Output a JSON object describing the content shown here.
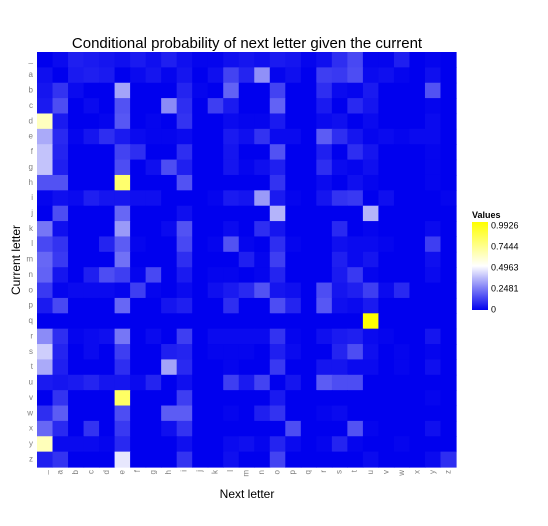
{
  "chart_data": {
    "type": "heatmap",
    "title": "Conditional probability of next letter given the current",
    "xlabel": "Next letter",
    "ylabel": "Current letter",
    "x_categories": [
      "_",
      "a",
      "b",
      "c",
      "d",
      "e",
      "f",
      "g",
      "h",
      "i",
      "j",
      "k",
      "l",
      "m",
      "n",
      "o",
      "p",
      "q",
      "r",
      "s",
      "t",
      "u",
      "v",
      "w",
      "x",
      "y",
      "z"
    ],
    "y_categories": [
      "_",
      "a",
      "b",
      "c",
      "d",
      "e",
      "f",
      "g",
      "h",
      "i",
      "j",
      "k",
      "l",
      "m",
      "n",
      "o",
      "p",
      "q",
      "r",
      "s",
      "t",
      "u",
      "v",
      "w",
      "x",
      "y",
      "z"
    ],
    "rows_top_to_bottom": true,
    "values": [
      [
        0.0,
        0.02,
        0.06,
        0.05,
        0.04,
        0.03,
        0.05,
        0.03,
        0.06,
        0.03,
        0.01,
        0.01,
        0.03,
        0.04,
        0.03,
        0.05,
        0.04,
        0.01,
        0.03,
        0.09,
        0.14,
        0.01,
        0.01,
        0.06,
        0.0,
        0.01,
        0.0
      ],
      [
        0.03,
        0.0,
        0.05,
        0.06,
        0.05,
        0.0,
        0.02,
        0.04,
        0.01,
        0.04,
        0.0,
        0.03,
        0.13,
        0.07,
        0.28,
        0.01,
        0.03,
        0.0,
        0.12,
        0.11,
        0.15,
        0.02,
        0.03,
        0.01,
        0.0,
        0.03,
        0.0
      ],
      [
        0.04,
        0.1,
        0.02,
        0.0,
        0.0,
        0.32,
        0.0,
        0.0,
        0.0,
        0.07,
        0.01,
        0.0,
        0.19,
        0.0,
        0.0,
        0.13,
        0.0,
        0.0,
        0.09,
        0.02,
        0.01,
        0.05,
        0.0,
        0.0,
        0.0,
        0.16,
        0.0
      ],
      [
        0.05,
        0.15,
        0.0,
        0.02,
        0.0,
        0.16,
        0.0,
        0.0,
        0.27,
        0.09,
        0.0,
        0.12,
        0.05,
        0.0,
        0.0,
        0.19,
        0.0,
        0.0,
        0.05,
        0.0,
        0.08,
        0.04,
        0.0,
        0.0,
        0.0,
        0.01,
        0.0
      ],
      [
        0.62,
        0.05,
        0.0,
        0.0,
        0.01,
        0.17,
        0.0,
        0.01,
        0.0,
        0.1,
        0.0,
        0.0,
        0.02,
        0.01,
        0.01,
        0.05,
        0.0,
        0.0,
        0.02,
        0.03,
        0.0,
        0.02,
        0.0,
        0.0,
        0.0,
        0.02,
        0.0
      ],
      [
        0.33,
        0.08,
        0.01,
        0.04,
        0.09,
        0.05,
        0.02,
        0.01,
        0.01,
        0.02,
        0.0,
        0.0,
        0.05,
        0.03,
        0.1,
        0.02,
        0.02,
        0.0,
        0.18,
        0.09,
        0.04,
        0.01,
        0.02,
        0.01,
        0.02,
        0.02,
        0.0
      ],
      [
        0.38,
        0.07,
        0.0,
        0.0,
        0.0,
        0.13,
        0.09,
        0.0,
        0.0,
        0.09,
        0.0,
        0.0,
        0.04,
        0.0,
        0.0,
        0.16,
        0.0,
        0.0,
        0.06,
        0.0,
        0.09,
        0.04,
        0.0,
        0.0,
        0.0,
        0.01,
        0.0
      ],
      [
        0.38,
        0.06,
        0.0,
        0.0,
        0.0,
        0.15,
        0.0,
        0.03,
        0.15,
        0.06,
        0.0,
        0.0,
        0.04,
        0.01,
        0.03,
        0.06,
        0.0,
        0.0,
        0.09,
        0.02,
        0.01,
        0.03,
        0.0,
        0.0,
        0.0,
        0.01,
        0.0
      ],
      [
        0.16,
        0.16,
        0.0,
        0.0,
        0.0,
        0.78,
        0.0,
        0.0,
        0.0,
        0.16,
        0.0,
        0.0,
        0.0,
        0.0,
        0.0,
        0.1,
        0.0,
        0.0,
        0.02,
        0.0,
        0.03,
        0.01,
        0.0,
        0.0,
        0.0,
        0.01,
        0.0
      ],
      [
        0.01,
        0.03,
        0.02,
        0.06,
        0.04,
        0.04,
        0.03,
        0.03,
        0.0,
        0.0,
        0.0,
        0.01,
        0.05,
        0.04,
        0.3,
        0.05,
        0.01,
        0.0,
        0.04,
        0.1,
        0.11,
        0.0,
        0.03,
        0.0,
        0.0,
        0.0,
        0.01
      ],
      [
        0.0,
        0.15,
        0.0,
        0.0,
        0.0,
        0.2,
        0.0,
        0.0,
        0.0,
        0.03,
        0.0,
        0.0,
        0.0,
        0.0,
        0.0,
        0.35,
        0.0,
        0.0,
        0.0,
        0.0,
        0.0,
        0.35,
        0.0,
        0.0,
        0.0,
        0.0,
        0.0
      ],
      [
        0.23,
        0.03,
        0.0,
        0.0,
        0.0,
        0.3,
        0.0,
        0.0,
        0.02,
        0.16,
        0.0,
        0.0,
        0.02,
        0.0,
        0.09,
        0.04,
        0.0,
        0.0,
        0.0,
        0.08,
        0.0,
        0.01,
        0.0,
        0.0,
        0.0,
        0.02,
        0.0
      ],
      [
        0.14,
        0.1,
        0.0,
        0.0,
        0.07,
        0.18,
        0.01,
        0.0,
        0.0,
        0.14,
        0.0,
        0.01,
        0.16,
        0.01,
        0.0,
        0.09,
        0.01,
        0.0,
        0.0,
        0.03,
        0.02,
        0.02,
        0.01,
        0.0,
        0.0,
        0.12,
        0.0
      ],
      [
        0.2,
        0.11,
        0.0,
        0.0,
        0.0,
        0.22,
        0.0,
        0.0,
        0.0,
        0.09,
        0.0,
        0.0,
        0.0,
        0.06,
        0.01,
        0.12,
        0.0,
        0.0,
        0.0,
        0.06,
        0.02,
        0.04,
        0.0,
        0.0,
        0.0,
        0.03,
        0.0
      ],
      [
        0.19,
        0.04,
        0.0,
        0.06,
        0.15,
        0.12,
        0.01,
        0.14,
        0.0,
        0.05,
        0.0,
        0.01,
        0.01,
        0.0,
        0.01,
        0.07,
        0.0,
        0.0,
        0.0,
        0.05,
        0.11,
        0.01,
        0.0,
        0.0,
        0.0,
        0.02,
        0.0
      ],
      [
        0.11,
        0.01,
        0.02,
        0.02,
        0.02,
        0.01,
        0.12,
        0.01,
        0.0,
        0.02,
        0.0,
        0.03,
        0.05,
        0.08,
        0.16,
        0.04,
        0.03,
        0.0,
        0.15,
        0.04,
        0.06,
        0.12,
        0.02,
        0.08,
        0.0,
        0.0,
        0.0
      ],
      [
        0.05,
        0.14,
        0.0,
        0.0,
        0.0,
        0.2,
        0.0,
        0.0,
        0.04,
        0.06,
        0.0,
        0.0,
        0.09,
        0.0,
        0.0,
        0.15,
        0.07,
        0.0,
        0.17,
        0.03,
        0.02,
        0.05,
        0.0,
        0.0,
        0.0,
        0.0,
        0.0
      ],
      [
        0.0,
        0.0,
        0.0,
        0.0,
        0.0,
        0.0,
        0.0,
        0.0,
        0.0,
        0.0,
        0.0,
        0.0,
        0.0,
        0.0,
        0.0,
        0.0,
        0.0,
        0.0,
        0.0,
        0.0,
        0.0,
        0.99,
        0.0,
        0.0,
        0.0,
        0.0,
        0.0
      ],
      [
        0.27,
        0.09,
        0.01,
        0.02,
        0.03,
        0.23,
        0.0,
        0.02,
        0.0,
        0.12,
        0.0,
        0.02,
        0.02,
        0.02,
        0.02,
        0.1,
        0.01,
        0.0,
        0.03,
        0.05,
        0.06,
        0.02,
        0.01,
        0.0,
        0.0,
        0.04,
        0.0
      ],
      [
        0.4,
        0.07,
        0.0,
        0.02,
        0.0,
        0.12,
        0.0,
        0.0,
        0.06,
        0.07,
        0.0,
        0.01,
        0.01,
        0.01,
        0.0,
        0.06,
        0.02,
        0.0,
        0.0,
        0.07,
        0.15,
        0.03,
        0.0,
        0.01,
        0.0,
        0.01,
        0.0
      ],
      [
        0.33,
        0.06,
        0.0,
        0.0,
        0.0,
        0.09,
        0.0,
        0.0,
        0.32,
        0.08,
        0.0,
        0.0,
        0.01,
        0.0,
        0.0,
        0.11,
        0.0,
        0.0,
        0.04,
        0.04,
        0.02,
        0.02,
        0.0,
        0.01,
        0.0,
        0.03,
        0.0
      ],
      [
        0.05,
        0.04,
        0.05,
        0.07,
        0.04,
        0.04,
        0.02,
        0.07,
        0.0,
        0.03,
        0.0,
        0.0,
        0.12,
        0.05,
        0.13,
        0.0,
        0.04,
        0.0,
        0.18,
        0.15,
        0.15,
        0.0,
        0.0,
        0.0,
        0.0,
        0.0,
        0.0
      ],
      [
        0.0,
        0.1,
        0.0,
        0.0,
        0.0,
        0.8,
        0.0,
        0.0,
        0.0,
        0.12,
        0.0,
        0.0,
        0.0,
        0.0,
        0.0,
        0.05,
        0.0,
        0.0,
        0.0,
        0.0,
        0.0,
        0.0,
        0.0,
        0.0,
        0.0,
        0.01,
        0.0
      ],
      [
        0.09,
        0.18,
        0.0,
        0.0,
        0.0,
        0.15,
        0.0,
        0.0,
        0.18,
        0.18,
        0.0,
        0.0,
        0.01,
        0.0,
        0.06,
        0.1,
        0.0,
        0.0,
        0.01,
        0.02,
        0.0,
        0.0,
        0.0,
        0.0,
        0.0,
        0.0,
        0.0
      ],
      [
        0.2,
        0.08,
        0.0,
        0.1,
        0.0,
        0.11,
        0.0,
        0.0,
        0.03,
        0.1,
        0.0,
        0.0,
        0.0,
        0.0,
        0.0,
        0.0,
        0.15,
        0.0,
        0.0,
        0.0,
        0.16,
        0.01,
        0.0,
        0.0,
        0.0,
        0.03,
        0.0
      ],
      [
        0.63,
        0.02,
        0.02,
        0.02,
        0.01,
        0.08,
        0.0,
        0.0,
        0.0,
        0.03,
        0.0,
        0.0,
        0.02,
        0.03,
        0.01,
        0.07,
        0.02,
        0.0,
        0.01,
        0.07,
        0.01,
        0.0,
        0.0,
        0.01,
        0.0,
        0.0,
        0.0
      ],
      [
        0.06,
        0.1,
        0.0,
        0.0,
        0.0,
        0.45,
        0.0,
        0.0,
        0.0,
        0.1,
        0.0,
        0.0,
        0.03,
        0.0,
        0.0,
        0.13,
        0.0,
        0.0,
        0.0,
        0.0,
        0.0,
        0.02,
        0.0,
        0.0,
        0.0,
        0.02,
        0.09
      ]
    ],
    "legend": {
      "title": "Values",
      "position": "right",
      "labels": [
        "0.9926",
        "0.7444",
        "0.4963",
        "0.2481",
        "0"
      ],
      "min": 0,
      "max": 0.9926
    },
    "colors": {
      "low": "#0000ee",
      "mid": "#ffffff",
      "high": "#ffff00"
    },
    "grid": false
  }
}
